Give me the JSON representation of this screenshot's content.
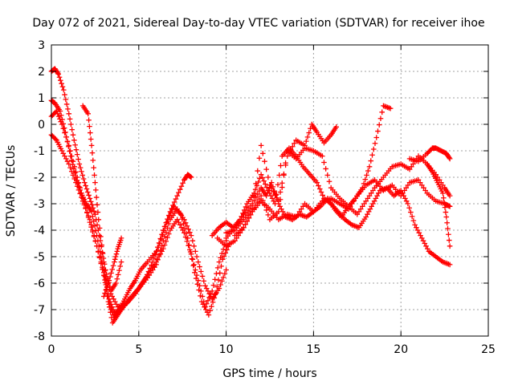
{
  "chart_data": {
    "type": "scatter",
    "title": "Day 072 of 2021, Sidereal Day-to-day VTEC variation (SDTVAR) for receiver ihoe",
    "xlabel": "GPS time / hours",
    "ylabel": "SDTVAR / TECUs",
    "xlim": [
      0,
      25
    ],
    "ylim": [
      -8,
      3
    ],
    "xticks": [
      0,
      5,
      10,
      15,
      20,
      25
    ],
    "yticks": [
      -8,
      -7,
      -6,
      -5,
      -4,
      -3,
      -2,
      -1,
      0,
      1,
      2,
      3
    ],
    "grid": true,
    "marker": "plus",
    "series_color": "#ff0000",
    "series": [
      {
        "x": [
          0.0,
          0.3,
          0.6,
          1.0,
          1.4,
          1.8,
          2.2,
          2.6,
          3.0,
          3.3,
          3.6,
          4.0,
          4.5,
          5.0,
          5.5,
          6.0,
          6.4,
          6.8,
          7.2,
          7.6,
          8.0,
          8.4,
          8.8,
          9.2,
          9.6,
          10.0
        ],
        "y": [
          -0.4,
          -0.6,
          -1.0,
          -1.5,
          -2.2,
          -2.9,
          -3.6,
          -4.6,
          -5.7,
          -6.6,
          -7.1,
          -7.0,
          -6.6,
          -6.2,
          -5.8,
          -5.3,
          -4.4,
          -3.6,
          -3.2,
          -3.6,
          -4.2,
          -5.2,
          -6.1,
          -6.6,
          -6.2,
          -5.5
        ]
      },
      {
        "x": [
          0.0,
          0.3,
          0.6,
          1.0,
          1.4,
          1.8,
          2.2,
          2.6,
          3.0,
          3.4,
          3.8,
          4.2,
          4.6,
          5.0,
          5.4,
          5.8,
          6.2,
          6.6,
          7.0,
          7.4,
          7.8,
          8.2,
          8.6,
          9.0,
          9.4,
          9.8,
          10.2
        ],
        "y": [
          0.3,
          0.5,
          0.0,
          -0.8,
          -1.8,
          -2.8,
          -3.7,
          -4.6,
          -5.6,
          -6.4,
          -6.9,
          -6.8,
          -6.5,
          -6.2,
          -5.8,
          -5.2,
          -4.5,
          -3.7,
          -3.1,
          -3.4,
          -4.3,
          -5.6,
          -6.7,
          -7.2,
          -6.4,
          -5.1,
          -4.5
        ]
      },
      {
        "x": [
          0.0,
          0.2,
          0.4,
          0.7,
          1.0,
          1.3,
          1.6,
          1.9,
          2.2,
          2.5,
          2.8,
          3.1,
          3.4,
          3.7,
          4.0
        ],
        "y": [
          2.0,
          2.1,
          1.9,
          1.3,
          0.4,
          -0.6,
          -1.5,
          -2.2,
          -2.8,
          -3.4,
          -4.4,
          -5.5,
          -6.3,
          -6.0,
          -5.2
        ]
      },
      {
        "x": [
          0.0,
          0.2,
          0.5,
          0.8,
          1.1,
          1.4,
          1.7,
          2.0,
          2.3,
          2.6,
          2.9,
          3.2,
          3.5,
          3.8,
          4.1,
          4.4,
          4.8,
          5.2,
          5.6,
          6.0,
          6.4,
          6.8,
          7.2,
          7.6,
          8.0,
          8.4,
          8.8,
          9.2,
          9.6,
          10.0
        ],
        "y": [
          0.9,
          0.8,
          0.5,
          -0.3,
          -1.2,
          -2.0,
          -2.6,
          -3.0,
          -3.3,
          -4.2,
          -5.2,
          -6.5,
          -7.5,
          -7.2,
          -6.9,
          -6.7,
          -6.4,
          -6.0,
          -5.6,
          -5.2,
          -4.7,
          -4.0,
          -3.6,
          -4.1,
          -4.9,
          -5.9,
          -6.9,
          -6.3,
          -5.2,
          -4.4
        ]
      },
      {
        "x": [
          1.8,
          2.1,
          2.3,
          2.5,
          2.7,
          3.0,
          3.3,
          3.6,
          3.9,
          4.2,
          4.5,
          4.8,
          5.1,
          5.5,
          6.0,
          6.4,
          6.8,
          7.2,
          7.6,
          7.8,
          8.0
        ],
        "y": [
          0.7,
          0.4,
          -0.8,
          -2.2,
          -3.6,
          -5.2,
          -6.8,
          -7.3,
          -7.0,
          -6.6,
          -6.2,
          -5.9,
          -5.5,
          -5.2,
          -4.8,
          -4.0,
          -3.3,
          -2.7,
          -2.1,
          -1.9,
          -2.0
        ]
      },
      {
        "x": [
          3.0,
          3.3,
          3.6,
          3.8,
          4.0
        ],
        "y": [
          -6.5,
          -5.9,
          -5.2,
          -4.7,
          -4.3
        ]
      },
      {
        "x": [
          10.0,
          10.5,
          11.0,
          11.5,
          12.0,
          12.3,
          12.6,
          13.0,
          13.4,
          13.8,
          14.2,
          14.6,
          15.0,
          15.4,
          15.8,
          16.2,
          16.6,
          17.0,
          17.4,
          17.8,
          18.2,
          18.6,
          19.0,
          19.4
        ],
        "y": [
          -4.3,
          -3.9,
          -3.4,
          -3.0,
          -2.4,
          -2.7,
          -2.2,
          -3.0,
          -3.5,
          -3.6,
          -3.4,
          -3.5,
          -3.3,
          -3.1,
          -2.8,
          -3.2,
          -3.5,
          -3.1,
          -2.8,
          -2.4,
          -1.6,
          -0.5,
          0.7,
          0.6
        ]
      },
      {
        "x": [
          9.2,
          9.6,
          10.0,
          10.4,
          10.8,
          11.2,
          11.6,
          12.0,
          12.4,
          12.8,
          13.2,
          13.6,
          14.0,
          14.4,
          14.8,
          15.2,
          15.6,
          16.0,
          16.4,
          16.8,
          17.2,
          17.6,
          18.0,
          18.4,
          18.8,
          19.2,
          19.6,
          20.0,
          20.4,
          20.8,
          21.2,
          21.6,
          22.0,
          22.4,
          22.8
        ],
        "y": [
          -4.2,
          -3.9,
          -3.7,
          -3.9,
          -3.6,
          -3.0,
          -2.6,
          -1.9,
          -2.5,
          -3.0,
          -1.2,
          -0.9,
          -1.2,
          -1.6,
          -1.9,
          -2.2,
          -2.8,
          -3.0,
          -3.3,
          -3.6,
          -3.8,
          -3.9,
          -3.5,
          -3.0,
          -2.5,
          -2.4,
          -2.7,
          -2.5,
          -3.0,
          -3.8,
          -4.3,
          -4.8,
          -5.0,
          -5.2,
          -5.3
        ]
      },
      {
        "x": [
          9.5,
          10.0,
          10.5,
          11.0,
          11.5,
          12.0,
          12.5,
          13.0,
          13.5,
          14.0,
          14.5,
          15.0,
          15.5,
          16.0,
          16.5,
          17.0,
          17.5,
          18.0,
          18.5,
          19.0,
          19.5,
          20.0,
          20.5,
          21.0,
          21.5,
          22.0,
          22.5,
          22.8
        ],
        "y": [
          -4.3,
          -4.6,
          -4.4,
          -3.9,
          -3.3,
          -2.7,
          -3.6,
          -3.3,
          -1.0,
          -1.3,
          -0.9,
          -1.0,
          -1.2,
          -2.4,
          -2.8,
          -3.1,
          -3.4,
          -2.9,
          -2.4,
          -2.0,
          -1.6,
          -1.5,
          -1.7,
          -1.2,
          -1.5,
          -1.9,
          -2.4,
          -2.7
        ]
      },
      {
        "x": [
          10.0,
          10.5,
          11.0,
          11.5,
          12.0,
          12.5,
          13.0,
          13.5,
          14.0,
          14.5,
          14.9,
          15.2,
          15.6,
          16.0,
          16.3
        ],
        "y": [
          -4.1,
          -4.0,
          -3.6,
          -3.2,
          -0.8,
          -2.3,
          -2.9,
          -1.2,
          -0.6,
          -0.8,
          0.0,
          -0.3,
          -0.7,
          -0.4,
          -0.1
        ]
      },
      {
        "x": [
          10.5,
          11.0,
          11.5,
          12.0,
          12.5,
          13.0,
          13.5,
          14.0,
          14.5,
          15.0,
          15.5,
          16.0,
          16.5,
          17.0,
          17.5,
          18.0,
          18.5,
          19.0,
          19.5,
          20.0,
          20.5,
          21.0,
          21.5,
          22.0,
          22.5,
          22.8
        ],
        "y": [
          -4.2,
          -3.9,
          -3.3,
          -2.9,
          -3.2,
          -3.6,
          -3.4,
          -3.5,
          -3.0,
          -3.3,
          -2.9,
          -2.8,
          -3.0,
          -3.2,
          -2.7,
          -2.3,
          -2.1,
          -2.5,
          -2.3,
          -2.7,
          -2.2,
          -2.1,
          -2.6,
          -2.9,
          -3.0,
          -3.1
        ]
      },
      {
        "x": [
          20.5,
          21.0,
          21.5,
          21.8,
          22.0,
          22.3,
          22.6,
          22.8
        ],
        "y": [
          -1.3,
          -1.4,
          -1.1,
          -0.9,
          -0.9,
          -1.0,
          -1.1,
          -1.3
        ]
      },
      {
        "x": [
          21.5,
          21.8,
          22.1,
          22.4,
          22.6,
          22.8
        ],
        "y": [
          -1.5,
          -1.8,
          -2.2,
          -2.6,
          -3.5,
          -4.6
        ]
      }
    ]
  }
}
